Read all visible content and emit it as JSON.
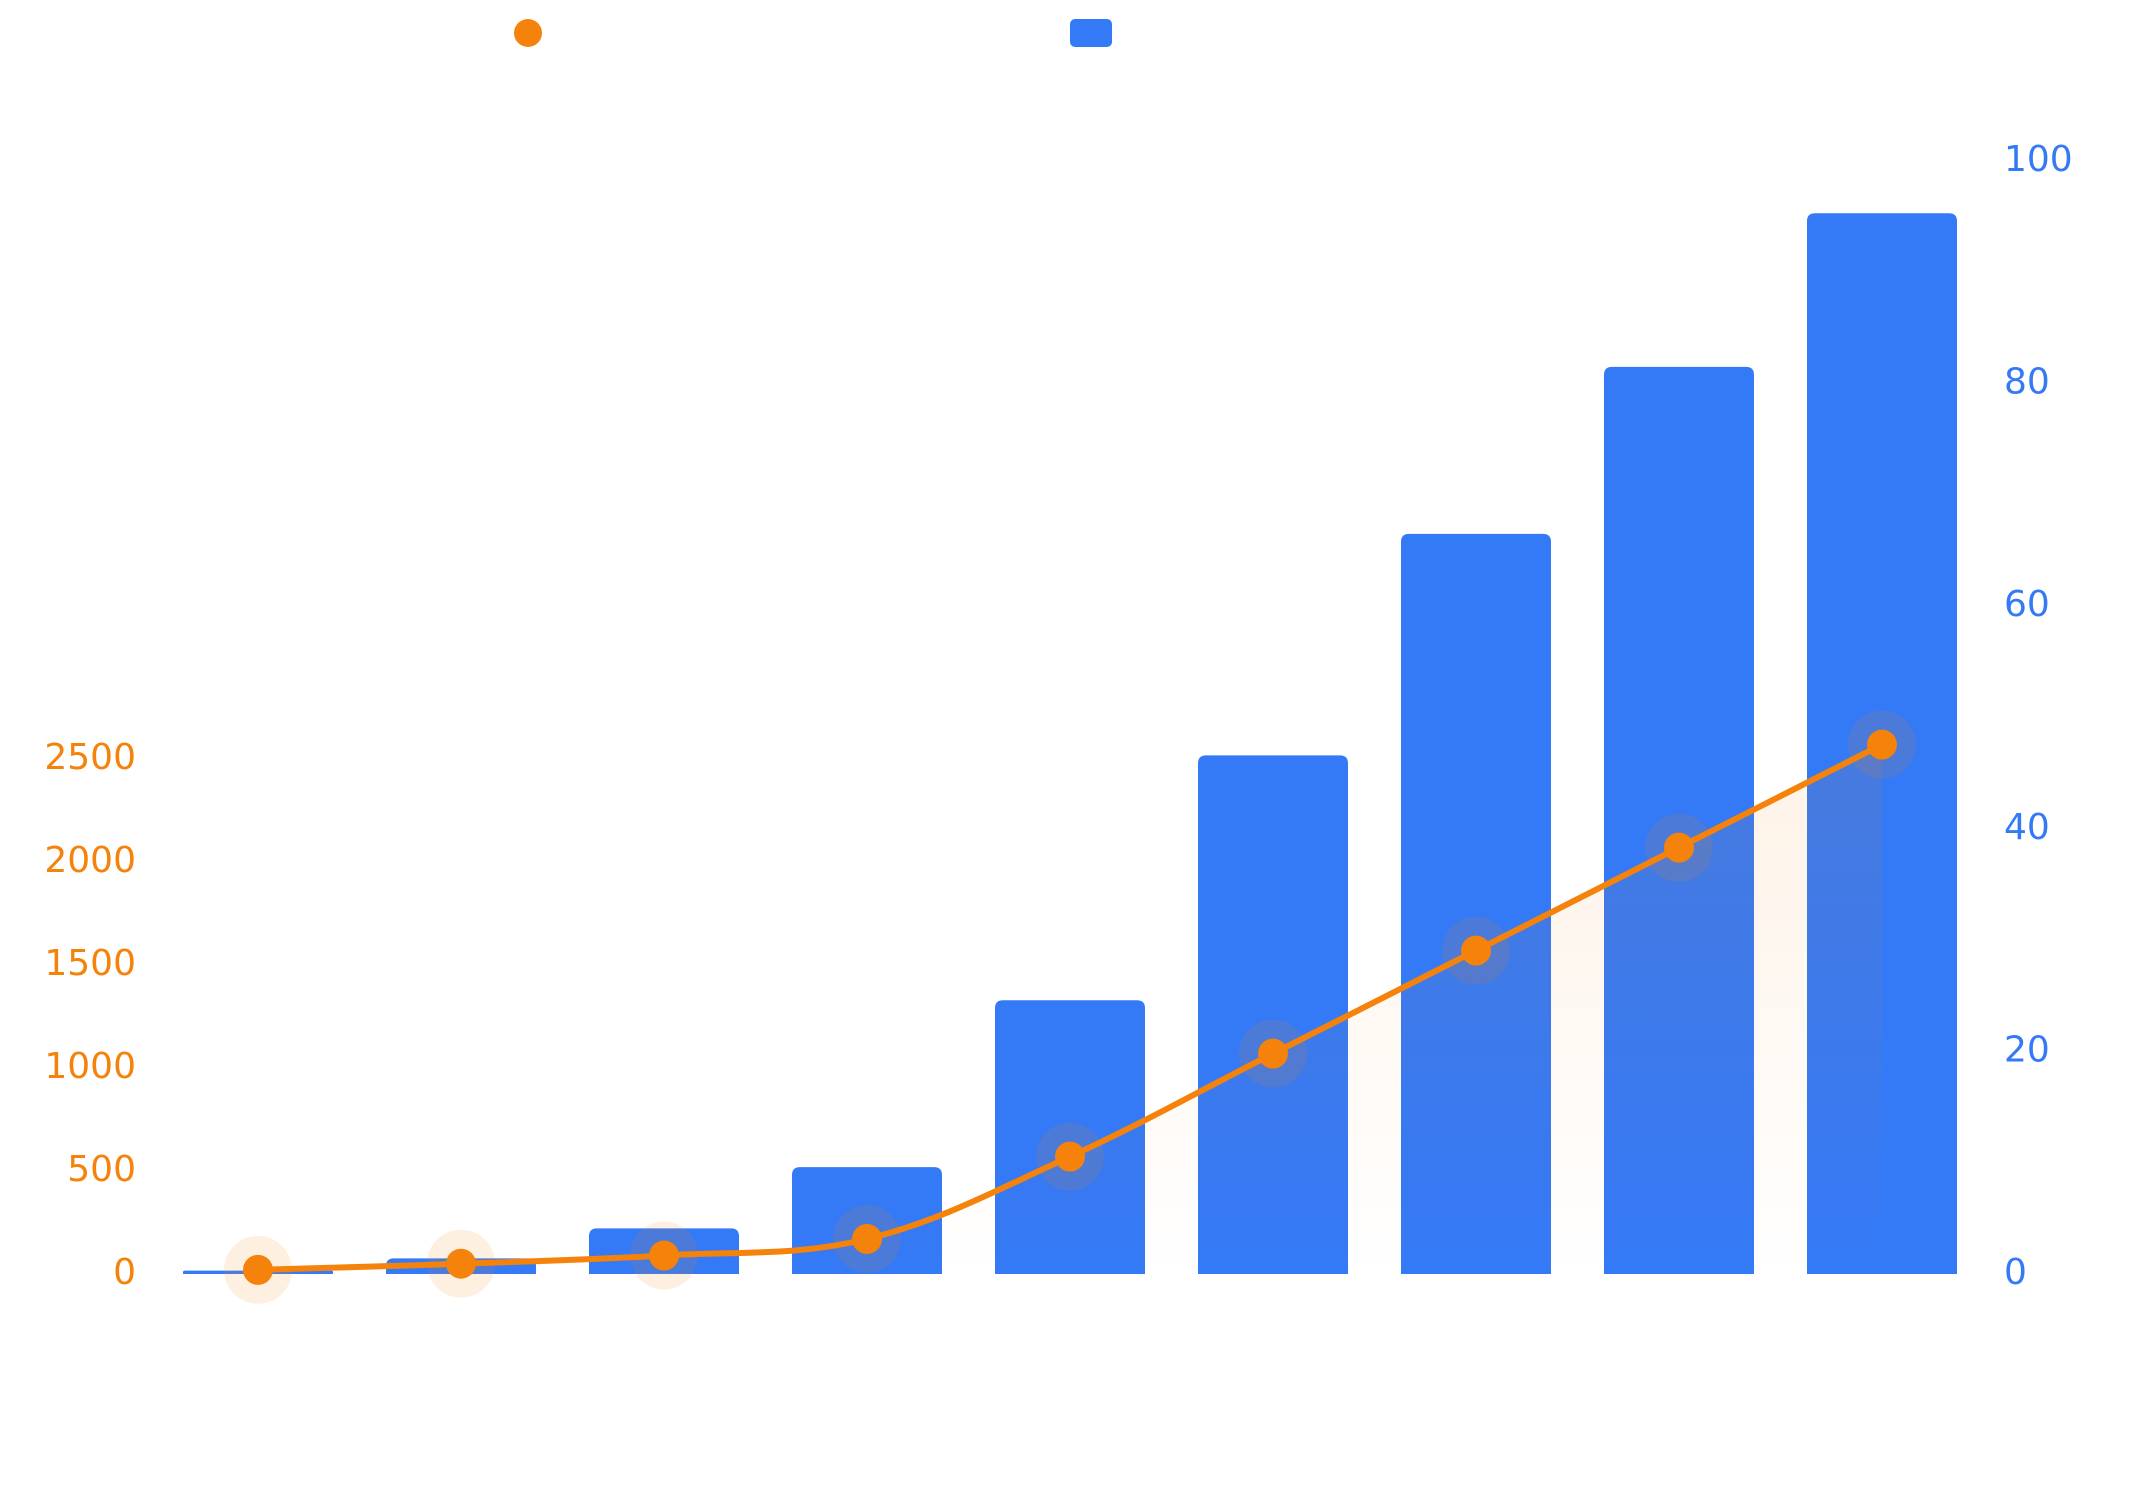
{
  "chart_data": {
    "type": "bar+line",
    "title": "",
    "categories": [
      "",
      "",
      "",
      "",
      "",
      "",
      "",
      "",
      ""
    ],
    "left_axis": {
      "ticks": [
        "0",
        "500",
        "1000",
        "1500",
        "2000",
        "2500"
      ],
      "range": [
        0,
        2800
      ]
    },
    "right_axis": {
      "ticks": [
        "0",
        "20",
        "40",
        "60",
        "80",
        "100"
      ],
      "range": [
        0,
        100
      ]
    },
    "series": [
      {
        "name": "",
        "type": "line",
        "axis": "left",
        "color": "#f5820b",
        "values": [
          20,
          50,
          90,
          170,
          570,
          1070,
          1570,
          2070,
          2570
        ]
      },
      {
        "name": "",
        "type": "bar",
        "axis": "right",
        "color": "#3479f6",
        "values": [
          0.3,
          1.4,
          4.1,
          9.6,
          24.6,
          46.6,
          66.5,
          81.5,
          95.3
        ]
      }
    ],
    "legend": {
      "position": "top-center",
      "entries": [
        "",
        ""
      ]
    }
  }
}
